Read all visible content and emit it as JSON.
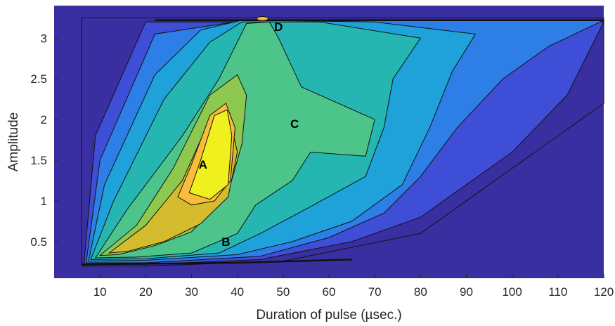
{
  "chart_data": {
    "type": "contour",
    "xlabel": "Duration of pulse (µsec.)",
    "ylabel": "Amplitude",
    "xlim": [
      0,
      120
    ],
    "ylim": [
      0.05,
      3.4
    ],
    "xticks": [
      10,
      20,
      30,
      40,
      50,
      60,
      70,
      80,
      90,
      100,
      110,
      120
    ],
    "yticks": [
      0.5,
      1,
      1.5,
      2,
      2.5,
      3
    ],
    "xtick_labels": [
      "10",
      "20",
      "30",
      "40",
      "50",
      "60",
      "70",
      "80",
      "90",
      "100",
      "110",
      "120"
    ],
    "ytick_labels": [
      "0.5",
      "1",
      "1.5",
      "2",
      "2.5",
      "3"
    ],
    "colormap": [
      "#3a2fa0",
      "#3f4ed6",
      "#2e7ee8",
      "#1ea2d9",
      "#26b6b1",
      "#4dc48a",
      "#8ec84e",
      "#d5bb2e",
      "#fabd3b",
      "#f0f01e"
    ],
    "annotations": [
      {
        "text": "A",
        "x": 32.5,
        "y": 1.45
      },
      {
        "text": "B",
        "x": 37.5,
        "y": 0.5
      },
      {
        "text": "C",
        "x": 52.5,
        "y": 1.95
      },
      {
        "text": "D",
        "x": 49,
        "y": 3.14
      }
    ],
    "features": {
      "baseline_amplitude": 0.22,
      "saturation_amplitude": 3.22,
      "onset_duration": 6
    }
  }
}
